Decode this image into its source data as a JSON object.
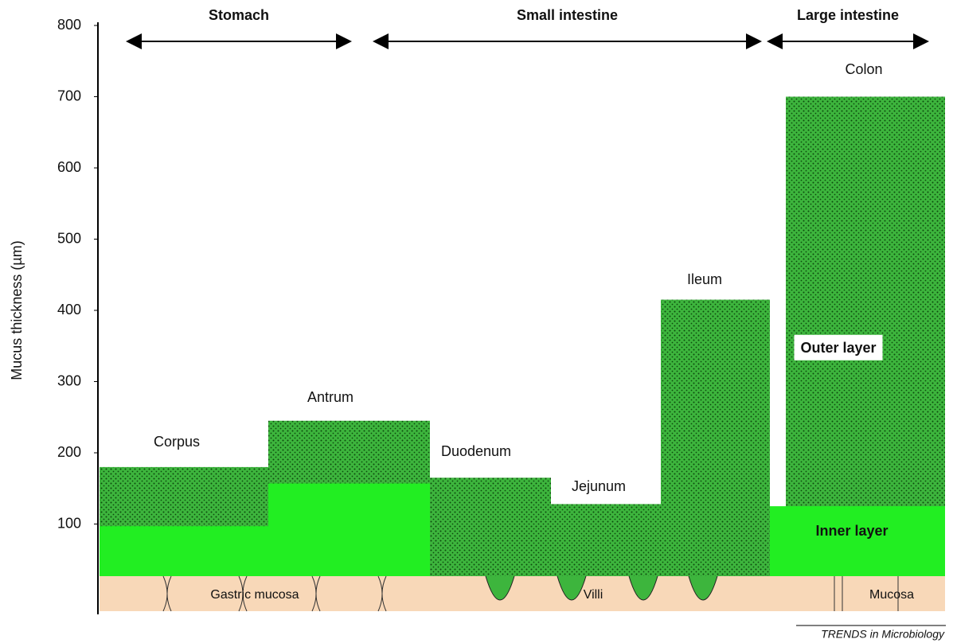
{
  "y_axis": {
    "label": "Mucus thickness (µm)",
    "ylim": [
      0,
      800
    ],
    "ticks": [
      100,
      200,
      300,
      400,
      500,
      600,
      700,
      800
    ]
  },
  "sections": [
    {
      "label": "Stomach"
    },
    {
      "label": "Small intestine"
    },
    {
      "label": "Large intestine"
    }
  ],
  "regions": [
    {
      "label": "Corpus",
      "outer_layer": 180,
      "inner_layer": 97
    },
    {
      "label": "Antrum",
      "outer_layer": 245,
      "inner_layer": 157
    },
    {
      "label": "Duodenum",
      "outer_layer": 165,
      "inner_layer": null
    },
    {
      "label": "Jejunum",
      "outer_layer": 128,
      "inner_layer": null
    },
    {
      "label": "Ileum",
      "outer_layer": 415,
      "inner_layer": null
    },
    {
      "label": "Colon",
      "outer_layer": 700,
      "inner_layer": 125
    }
  ],
  "layer_labels": {
    "outer": "Outer layer",
    "inner": "Inner layer"
  },
  "tissue_labels": [
    "Gastric mucosa",
    "Villi",
    "Mucosa"
  ],
  "credit": "TRENDS in Microbiology"
}
